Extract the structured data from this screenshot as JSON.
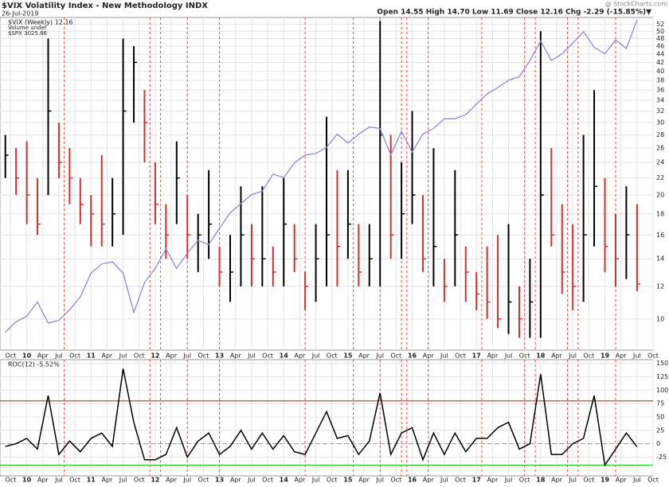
{
  "chart_data": [
    {
      "type": "hlc",
      "title": "$VIX Volatility Index - New Methodology INDX",
      "date": "26-Jul-2019",
      "quote": "Open 14.55 High 14.70 Low 11.69 Close 12.16 Chg -2.29 (-15.85%)▼",
      "credit": "@ StockCharts.com",
      "volume_label": "Volume undef",
      "x": [
        "2009-09",
        "2009-11",
        "2010-01",
        "2010-03",
        "2010-05",
        "2010-07",
        "2010-09",
        "2010-11",
        "2011-01",
        "2011-03",
        "2011-05",
        "2011-07",
        "2011-09",
        "2011-11",
        "2012-01",
        "2012-03",
        "2012-05",
        "2012-07",
        "2012-09",
        "2012-11",
        "2013-01",
        "2013-03",
        "2013-05",
        "2013-07",
        "2013-09",
        "2013-11",
        "2014-01",
        "2014-03",
        "2014-05",
        "2014-07",
        "2014-09",
        "2014-11",
        "2015-01",
        "2015-03",
        "2015-05",
        "2015-07",
        "2015-09",
        "2015-11",
        "2016-01",
        "2016-03",
        "2016-05",
        "2016-07",
        "2016-09",
        "2016-11",
        "2017-01",
        "2017-03",
        "2017-05",
        "2017-07",
        "2017-09",
        "2017-11",
        "2018-01",
        "2018-03",
        "2018-05",
        "2018-07",
        "2018-09",
        "2018-11",
        "2019-01",
        "2019-03",
        "2019-05",
        "2019-07"
      ],
      "xlim": [
        "2009-08",
        "2019-10"
      ],
      "xticks": [
        {
          "value": "2009-10",
          "label": "Oct"
        },
        {
          "value": "2010-01",
          "label": "10"
        },
        {
          "value": "2010-04",
          "label": "Apr"
        },
        {
          "value": "2010-07",
          "label": "Jul"
        },
        {
          "value": "2010-10",
          "label": "Oct"
        },
        {
          "value": "2011-01",
          "label": "11"
        },
        {
          "value": "2011-04",
          "label": "Apr"
        },
        {
          "value": "2011-07",
          "label": "Jul"
        },
        {
          "value": "2011-10",
          "label": "Oct"
        },
        {
          "value": "2012-01",
          "label": "12"
        },
        {
          "value": "2012-04",
          "label": "Apr"
        },
        {
          "value": "2012-07",
          "label": "Jul"
        },
        {
          "value": "2012-10",
          "label": "Oct"
        },
        {
          "value": "2013-01",
          "label": "13"
        },
        {
          "value": "2013-04",
          "label": "Apr"
        },
        {
          "value": "2013-07",
          "label": "Jul"
        },
        {
          "value": "2013-10",
          "label": "Oct"
        },
        {
          "value": "2014-01",
          "label": "14"
        },
        {
          "value": "2014-04",
          "label": "Apr"
        },
        {
          "value": "2014-07",
          "label": "Jul"
        },
        {
          "value": "2014-10",
          "label": "Oct"
        },
        {
          "value": "2015-01",
          "label": "15"
        },
        {
          "value": "2015-04",
          "label": "Apr"
        },
        {
          "value": "2015-07",
          "label": "Jul"
        },
        {
          "value": "2015-10",
          "label": "Oct"
        },
        {
          "value": "2016-01",
          "label": "16"
        },
        {
          "value": "2016-04",
          "label": "Apr"
        },
        {
          "value": "2016-07",
          "label": "Jul"
        },
        {
          "value": "2016-10",
          "label": "Oct"
        },
        {
          "value": "2017-01",
          "label": "17"
        },
        {
          "value": "2017-04",
          "label": "Apr"
        },
        {
          "value": "2017-07",
          "label": "Jul"
        },
        {
          "value": "2017-10",
          "label": "Oct"
        },
        {
          "value": "2018-01",
          "label": "18"
        },
        {
          "value": "2018-04",
          "label": "Apr"
        },
        {
          "value": "2018-07",
          "label": "Jul"
        },
        {
          "value": "2018-10",
          "label": "Oct"
        },
        {
          "value": "2019-01",
          "label": "19"
        },
        {
          "value": "2019-04",
          "label": "Apr"
        },
        {
          "value": "2019-07",
          "label": "Jul"
        },
        {
          "value": "2019-10",
          "label": "Oct"
        }
      ],
      "ylim": [
        8.4,
        54
      ],
      "yticks": [
        10,
        12,
        14,
        16,
        18,
        20,
        22,
        24,
        26,
        28,
        30,
        32,
        34,
        36,
        38,
        40,
        42,
        44,
        46,
        48,
        50,
        52
      ],
      "log_scale": true,
      "y2lim": [
        995,
        3052
      ],
      "y2_log_scale": true,
      "grid": true,
      "event_lines": [
        "2010-08",
        "2011-12",
        "2012-02",
        "2012-07",
        "2013-01",
        "2014-05",
        "2015-02",
        "2015-07",
        "2015-11",
        "2015-12",
        "2016-04",
        "2017-02",
        "2017-10",
        "2017-12",
        "2018-06",
        "2018-08",
        "2019-03"
      ],
      "event_color": "#e04848",
      "series": [
        {
          "name": "$VIX (Weekly) 12.16",
          "color_up": "#000000",
          "color_down": "#d03030",
          "close": [
            25,
            22,
            20,
            17,
            32,
            24,
            22,
            19,
            18,
            17,
            18,
            32,
            42,
            30,
            19,
            16,
            22,
            16,
            16,
            17,
            13,
            13,
            16,
            14,
            14,
            13,
            17,
            14,
            12,
            14,
            16,
            15,
            17,
            13,
            14,
            28,
            16,
            18,
            20,
            14,
            15,
            12,
            16,
            13,
            11.5,
            11,
            10,
            11,
            10,
            11,
            20,
            16,
            13,
            12,
            16,
            21,
            15,
            14,
            16,
            12.16
          ],
          "high": [
            28,
            26,
            27,
            22,
            48,
            30,
            26,
            22,
            20,
            25,
            22,
            48,
            46,
            36,
            24,
            19,
            27,
            20,
            18,
            23,
            15,
            16,
            21,
            17,
            21,
            15,
            22,
            17,
            13,
            17,
            31,
            23,
            23,
            17,
            17,
            53,
            28,
            24,
            32,
            20,
            26,
            14,
            23,
            15,
            13,
            15,
            16,
            17,
            12,
            14,
            50,
            26,
            19,
            17,
            28,
            36,
            22,
            18,
            21,
            19
          ],
          "low": [
            22,
            20,
            17,
            16,
            20,
            22,
            19,
            17,
            15,
            15,
            15,
            16,
            30,
            24,
            17,
            14,
            17,
            14,
            13,
            14,
            12,
            11,
            12,
            12,
            12,
            12,
            12,
            13,
            10.5,
            11,
            12,
            12,
            14,
            12,
            12,
            12,
            14,
            14,
            17,
            13,
            12,
            11,
            12,
            11,
            10.5,
            10,
            9.5,
            9.2,
            9,
            9,
            9,
            15,
            11.5,
            10.5,
            11,
            15,
            13,
            12,
            12.5,
            11.69
          ]
        },
        {
          "name": "$SPX 3025.86",
          "color": "#8c8cc8",
          "axis": "y2",
          "values": [
            1057,
            1095,
            1115,
            1170,
            1090,
            1100,
            1140,
            1190,
            1290,
            1330,
            1340,
            1290,
            1130,
            1250,
            1310,
            1400,
            1310,
            1380,
            1440,
            1420,
            1500,
            1580,
            1630,
            1680,
            1700,
            1800,
            1780,
            1870,
            1920,
            1930,
            1970,
            2060,
            2000,
            2060,
            2110,
            2100,
            1920,
            2080,
            1940,
            2060,
            2100,
            2170,
            2170,
            2200,
            2280,
            2360,
            2410,
            2470,
            2500,
            2640,
            2820,
            2640,
            2700,
            2800,
            2910,
            2760,
            2700,
            2830,
            2750,
            3026
          ]
        }
      ]
    },
    {
      "type": "line",
      "title": "ROC(12) -5.52%",
      "color": "#000000",
      "values": [
        -5,
        0,
        10,
        -10,
        90,
        -20,
        5,
        -15,
        10,
        20,
        -5,
        140,
        40,
        -30,
        -30,
        -20,
        30,
        -25,
        5,
        20,
        -20,
        -5,
        25,
        -10,
        20,
        -10,
        15,
        -15,
        -20,
        20,
        60,
        10,
        15,
        -20,
        5,
        95,
        -20,
        20,
        30,
        -30,
        20,
        -20,
        20,
        -15,
        10,
        10,
        30,
        40,
        -10,
        0,
        130,
        -20,
        -20,
        0,
        10,
        90,
        -40,
        -10,
        20,
        -5.52
      ],
      "ylim": [
        -60,
        157
      ],
      "yticks": [
        -25,
        0,
        25,
        50,
        75,
        100,
        125,
        150
      ],
      "zero_line": true,
      "reference_lines": [
        {
          "value": 80,
          "color": "#b83a28"
        },
        {
          "value": -40,
          "color": "#22cc22"
        }
      ]
    }
  ]
}
